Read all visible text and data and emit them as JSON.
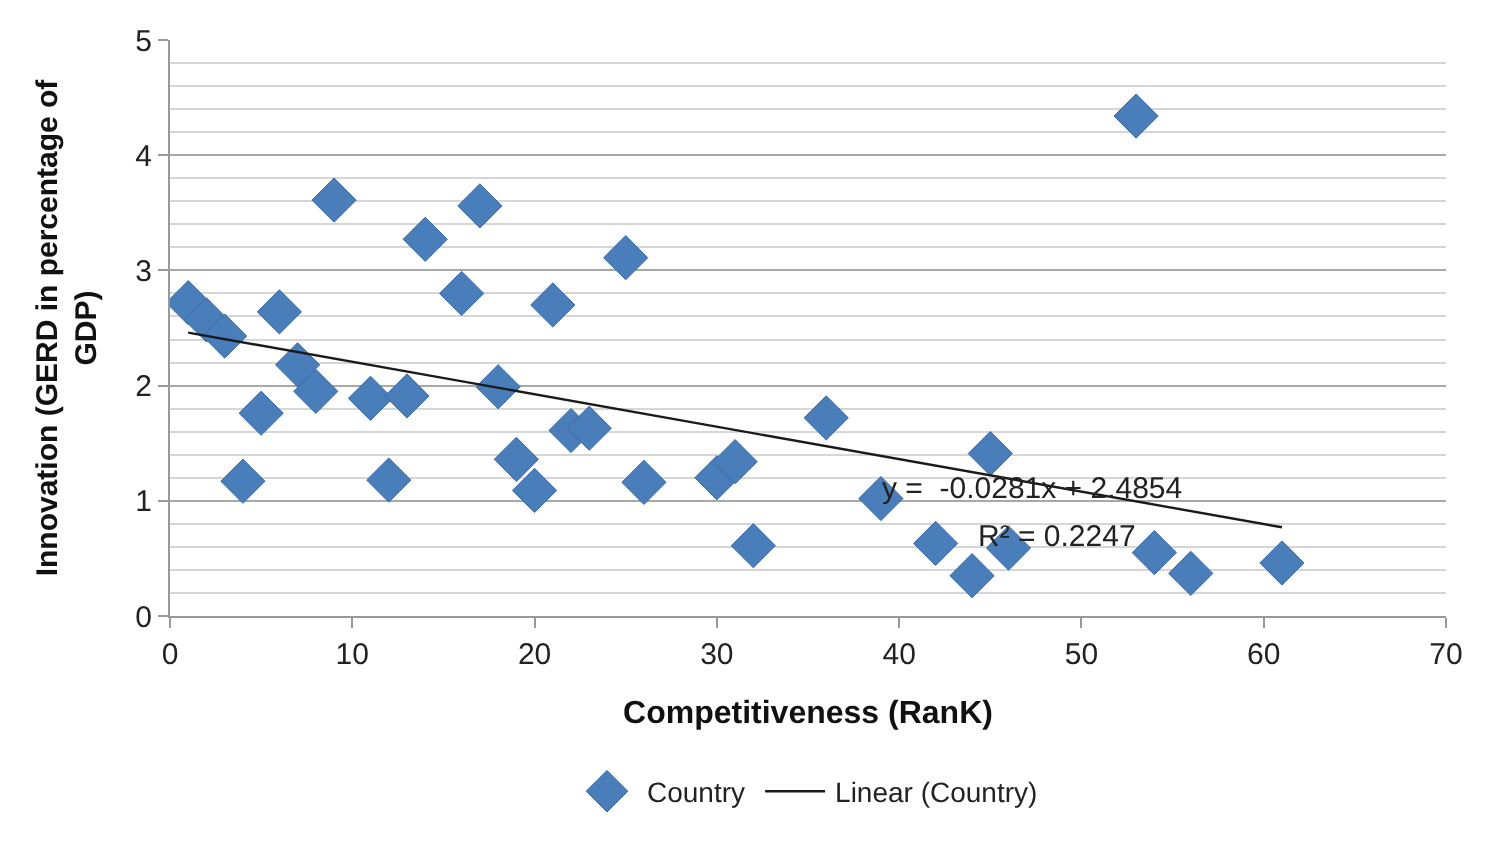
{
  "chart_data": {
    "type": "scatter",
    "xlabel": "Competitiveness (RanK)",
    "ylabel": "Innovation (GERD in percentage of GDP)",
    "xlim": [
      0,
      70
    ],
    "xticks": [
      0,
      10,
      20,
      30,
      40,
      50,
      60,
      70
    ],
    "ylim": [
      0,
      5
    ],
    "yticks": [
      0,
      1,
      2,
      3,
      4,
      5
    ],
    "grid": "y",
    "legend": "bottom",
    "series": [
      {
        "name": "Country",
        "marker": "diamond",
        "color": "#4a7ebb",
        "x": [
          1,
          2,
          3,
          4,
          5,
          6,
          7,
          8,
          9,
          11,
          12,
          13,
          14,
          16,
          17,
          18,
          19,
          20,
          21,
          22,
          23,
          25,
          26,
          30,
          31,
          32,
          36,
          39,
          42,
          44,
          45,
          46,
          53,
          54,
          56,
          61
        ],
        "values": [
          2.72,
          2.57,
          2.43,
          1.17,
          1.76,
          2.64,
          2.18,
          1.95,
          3.61,
          1.89,
          1.18,
          1.91,
          3.27,
          2.8,
          3.56,
          1.99,
          1.36,
          1.09,
          2.7,
          1.61,
          1.63,
          3.11,
          1.16,
          1.2,
          1.34,
          0.61,
          1.72,
          1.02,
          0.63,
          0.35,
          1.41,
          0.59,
          4.34,
          0.55,
          0.37,
          0.46
        ]
      },
      {
        "name": "Linear (Country)",
        "type": "line",
        "marker": "none",
        "line_style": "solid",
        "color": "#1a1a1a",
        "x": [
          1,
          61
        ],
        "values": [
          2.46,
          0.77
        ]
      }
    ],
    "annotations": [
      "y =  -0.0281x + 2.4854",
      "R² = 0.2247"
    ]
  }
}
